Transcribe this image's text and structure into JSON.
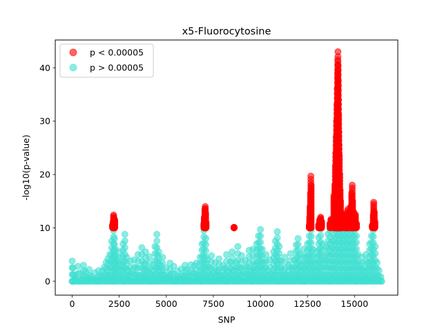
{
  "chart_data": {
    "type": "scatter",
    "title": "x5-Fluorocytosine",
    "xlabel": "SNP",
    "ylabel": "-log10(p-value)",
    "xlim": [
      -900,
      17300
    ],
    "ylim": [
      -2.6,
      45.2
    ],
    "xticks": [
      0,
      2500,
      5000,
      7500,
      10000,
      12500,
      15000
    ],
    "xtick_labels": [
      "0",
      "2500",
      "5000",
      "7500",
      "10000",
      "12500",
      "15000"
    ],
    "yticks": [
      0,
      10,
      20,
      30,
      40
    ],
    "ytick_labels": [
      "0",
      "10",
      "20",
      "30",
      "40"
    ],
    "legend_position": "upper-left",
    "series": [
      {
        "name": "p < 0.00005",
        "color": "#ff0000",
        "alpha": 0.6,
        "points": [
          [
            2150,
            10.6
          ],
          [
            2180,
            11.2
          ],
          [
            2200,
            12.4
          ],
          [
            2220,
            11.8
          ],
          [
            2240,
            10.9
          ],
          [
            2260,
            11.5
          ],
          [
            7000,
            10.8
          ],
          [
            7020,
            12.0
          ],
          [
            7050,
            13.5
          ],
          [
            7070,
            14.0
          ],
          [
            7090,
            12.8
          ],
          [
            7110,
            11.0
          ],
          [
            8600,
            10.1
          ],
          [
            12600,
            10.5
          ],
          [
            12620,
            12.0
          ],
          [
            12640,
            14.0
          ],
          [
            12660,
            16.5
          ],
          [
            12680,
            19.7
          ],
          [
            12700,
            18.0
          ],
          [
            13100,
            10.6
          ],
          [
            13150,
            11.5
          ],
          [
            13200,
            12.0
          ],
          [
            13250,
            11.2
          ],
          [
            13700,
            10.8
          ],
          [
            13750,
            11.6
          ],
          [
            13900,
            16.0
          ],
          [
            13950,
            18.0
          ],
          [
            13980,
            21.5
          ],
          [
            14000,
            24.0
          ],
          [
            14020,
            27.0
          ],
          [
            14040,
            30.0
          ],
          [
            14060,
            33.0
          ],
          [
            14080,
            36.0
          ],
          [
            14100,
            39.0
          ],
          [
            14110,
            41.5
          ],
          [
            14120,
            43.0
          ],
          [
            14130,
            40.5
          ],
          [
            14140,
            37.5
          ],
          [
            14150,
            34.0
          ],
          [
            14160,
            31.0
          ],
          [
            14170,
            28.0
          ],
          [
            14180,
            25.5
          ],
          [
            14200,
            23.5
          ],
          [
            14220,
            20.0
          ],
          [
            14240,
            17.0
          ],
          [
            14260,
            15.0
          ],
          [
            14300,
            13.0
          ],
          [
            14350,
            12.0
          ],
          [
            14500,
            11.0
          ],
          [
            14550,
            12.5
          ],
          [
            14600,
            11.5
          ],
          [
            14650,
            13.5
          ],
          [
            14700,
            12.0
          ],
          [
            14800,
            14.0
          ],
          [
            14850,
            16.5
          ],
          [
            14880,
            18.0
          ],
          [
            14900,
            15.0
          ],
          [
            14950,
            13.0
          ],
          [
            15000,
            11.5
          ],
          [
            15050,
            12.5
          ],
          [
            15100,
            10.8
          ],
          [
            15950,
            10.5
          ],
          [
            16000,
            12.5
          ],
          [
            16020,
            14.8
          ],
          [
            16050,
            13.0
          ],
          [
            16080,
            11.2
          ]
        ]
      },
      {
        "name": "p > 0.00005",
        "color": "#40e0d0",
        "alpha": 0.6,
        "points": [
          [
            0,
            3.8
          ],
          [
            50,
            2.5
          ],
          [
            120,
            1.2
          ],
          [
            200,
            0.4
          ],
          [
            300,
            2.8
          ],
          [
            400,
            1.5
          ],
          [
            500,
            0.2
          ],
          [
            600,
            3.0
          ],
          [
            700,
            1.8
          ],
          [
            800,
            0.5
          ],
          [
            900,
            2.2
          ],
          [
            1000,
            1.0
          ],
          [
            1100,
            0.3
          ],
          [
            1200,
            1.6
          ],
          [
            1300,
            0.6
          ],
          [
            1400,
            2.0
          ],
          [
            1500,
            0.9
          ],
          [
            1600,
            1.9
          ],
          [
            1700,
            2.6
          ],
          [
            1800,
            3.5
          ],
          [
            1900,
            4.2
          ],
          [
            2000,
            5.0
          ],
          [
            2100,
            7.5
          ],
          [
            2200,
            9.5
          ],
          [
            2250,
            8.0
          ],
          [
            2300,
            6.0
          ],
          [
            2400,
            4.0
          ],
          [
            2500,
            5.5
          ],
          [
            2600,
            3.0
          ],
          [
            2700,
            7.0
          ],
          [
            2800,
            8.8
          ],
          [
            2900,
            4.5
          ],
          [
            3000,
            2.0
          ],
          [
            3100,
            3.8
          ],
          [
            3200,
            1.5
          ],
          [
            3300,
            4.0
          ],
          [
            3400,
            2.5
          ],
          [
            3500,
            5.0
          ],
          [
            3600,
            1.0
          ],
          [
            3700,
            6.3
          ],
          [
            3800,
            3.2
          ],
          [
            3900,
            5.5
          ],
          [
            4000,
            2.1
          ],
          [
            4100,
            4.6
          ],
          [
            4200,
            1.4
          ],
          [
            4300,
            3.0
          ],
          [
            4400,
            6.5
          ],
          [
            4500,
            8.8
          ],
          [
            4600,
            5.5
          ],
          [
            4700,
            3.0
          ],
          [
            4800,
            4.5
          ],
          [
            4900,
            1.2
          ],
          [
            5000,
            2.5
          ],
          [
            5100,
            0.8
          ],
          [
            5200,
            3.4
          ],
          [
            5300,
            1.5
          ],
          [
            5400,
            2.8
          ],
          [
            5500,
            0.5
          ],
          [
            5600,
            1.9
          ],
          [
            5700,
            0.7
          ],
          [
            5800,
            2.3
          ],
          [
            5900,
            1.0
          ],
          [
            6000,
            3.0
          ],
          [
            6100,
            2.2
          ],
          [
            6200,
            0.9
          ],
          [
            6300,
            3.1
          ],
          [
            6400,
            1.6
          ],
          [
            6500,
            2.9
          ],
          [
            6600,
            3.4
          ],
          [
            6700,
            1.2
          ],
          [
            6800,
            4.5
          ],
          [
            6900,
            7.0
          ],
          [
            7000,
            9.5
          ],
          [
            7100,
            8.0
          ],
          [
            7200,
            4.0
          ],
          [
            7300,
            2.5
          ],
          [
            7400,
            4.8
          ],
          [
            7500,
            1.5
          ],
          [
            7600,
            3.5
          ],
          [
            7700,
            2.0
          ],
          [
            7800,
            4.2
          ],
          [
            7900,
            1.0
          ],
          [
            8000,
            3.0
          ],
          [
            8100,
            2.4
          ],
          [
            8200,
            5.0
          ],
          [
            8300,
            1.8
          ],
          [
            8400,
            3.6
          ],
          [
            8500,
            5.5
          ],
          [
            8600,
            2.0
          ],
          [
            8700,
            3.5
          ],
          [
            8800,
            6.5
          ],
          [
            8900,
            2.5
          ],
          [
            9000,
            4.8
          ],
          [
            9100,
            1.6
          ],
          [
            9200,
            3.9
          ],
          [
            9300,
            2.7
          ],
          [
            9400,
            5.8
          ],
          [
            9500,
            2.0
          ],
          [
            9600,
            6.0
          ],
          [
            9700,
            3.0
          ],
          [
            9800,
            7.0
          ],
          [
            9900,
            8.5
          ],
          [
            10000,
            9.7
          ],
          [
            10100,
            6.0
          ],
          [
            10200,
            3.5
          ],
          [
            10300,
            5.0
          ],
          [
            10400,
            2.0
          ],
          [
            10500,
            4.0
          ],
          [
            10600,
            1.5
          ],
          [
            10700,
            5.5
          ],
          [
            10800,
            7.5
          ],
          [
            10900,
            9.3
          ],
          [
            11000,
            6.5
          ],
          [
            11100,
            3.8
          ],
          [
            11200,
            2.0
          ],
          [
            11300,
            4.5
          ],
          [
            11400,
            1.2
          ],
          [
            11500,
            3.0
          ],
          [
            11600,
            5.2
          ],
          [
            11700,
            2.4
          ],
          [
            11800,
            4.0
          ],
          [
            11900,
            6.8
          ],
          [
            12000,
            8.0
          ],
          [
            12100,
            5.0
          ],
          [
            12200,
            3.0
          ],
          [
            12300,
            6.0
          ],
          [
            12400,
            4.5
          ],
          [
            12500,
            7.0
          ],
          [
            12600,
            8.5
          ],
          [
            12700,
            9.6
          ],
          [
            12800,
            6.0
          ],
          [
            12900,
            3.5
          ],
          [
            13000,
            5.5
          ],
          [
            13100,
            8.2
          ],
          [
            13200,
            9.8
          ],
          [
            13300,
            7.0
          ],
          [
            13400,
            4.0
          ],
          [
            13500,
            6.5
          ],
          [
            13600,
            8.8
          ],
          [
            13700,
            9.5
          ],
          [
            13800,
            7.5
          ],
          [
            13900,
            9.8
          ],
          [
            14000,
            9.5
          ],
          [
            14100,
            9.8
          ],
          [
            14200,
            9.0
          ],
          [
            14300,
            9.6
          ],
          [
            14400,
            9.2
          ],
          [
            14500,
            9.7
          ],
          [
            14600,
            9.4
          ],
          [
            14700,
            9.8
          ],
          [
            14800,
            9.3
          ],
          [
            14900,
            9.6
          ],
          [
            15000,
            9.5
          ],
          [
            15100,
            8.5
          ],
          [
            15200,
            5.0
          ],
          [
            15300,
            3.0
          ],
          [
            15400,
            4.5
          ],
          [
            15500,
            2.0
          ],
          [
            15600,
            5.0
          ],
          [
            15700,
            3.5
          ],
          [
            15800,
            7.0
          ],
          [
            15900,
            8.5
          ],
          [
            16000,
            9.6
          ],
          [
            16100,
            6.5
          ],
          [
            16200,
            3.5
          ],
          [
            16300,
            2.0
          ],
          [
            16400,
            0.8
          ]
        ],
        "bands": [
          [
            0,
            16450,
            0,
            0.6
          ]
        ]
      }
    ]
  }
}
